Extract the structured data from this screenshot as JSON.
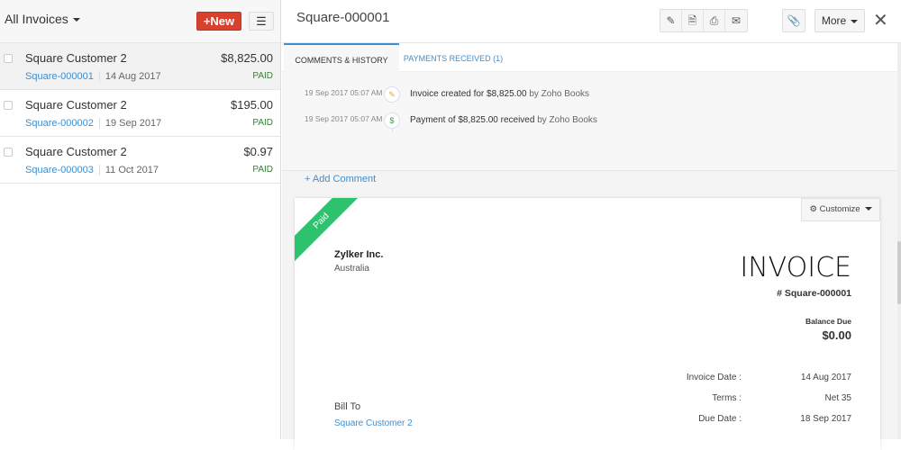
{
  "list": {
    "title": "All Invoices",
    "new_label": "New",
    "items": [
      {
        "customer": "Square Customer 2",
        "amount": "$8,825.00",
        "number": "Square-000001",
        "date": "14 Aug 2017",
        "status": "PAID"
      },
      {
        "customer": "Square Customer 2",
        "amount": "$195.00",
        "number": "Square-000002",
        "date": "19 Sep 2017",
        "status": "PAID"
      },
      {
        "customer": "Square Customer 2",
        "amount": "$0.97",
        "number": "Square-000003",
        "date": "11 Oct 2017",
        "status": "PAID"
      }
    ]
  },
  "detail": {
    "title": "Square-000001",
    "more_label": "More",
    "toolbar_icons": [
      "pencil-icon",
      "pdf-icon",
      "print-icon",
      "mail-icon",
      "paperclip-icon"
    ],
    "tabs": [
      "COMMENTS & HISTORY",
      "PAYMENTS RECEIVED (1)"
    ],
    "history": [
      {
        "time": "19 Sep 2017 05:07 AM",
        "text": "Invoice created for $8,825.00",
        "by": "by Zoho Books",
        "icon": "invoice-icon"
      },
      {
        "time": "19 Sep 2017 05:07 AM",
        "text": "Payment of $8,825.00 received",
        "by": "by Zoho Books",
        "icon": "dollar-icon"
      }
    ],
    "add_comment": "+ Add Comment"
  },
  "invoice": {
    "ribbon": "Paid",
    "customize": "Customize",
    "org": "Zylker Inc.",
    "country": "Australia",
    "heading": "INVOICE",
    "number": "# Square-000001",
    "balance_label": "Balance Due",
    "balance": "$0.00",
    "fields": [
      {
        "k": "Invoice Date :",
        "v": "14 Aug 2017"
      },
      {
        "k": "Terms :",
        "v": "Net 35"
      },
      {
        "k": "Due Date :",
        "v": "18 Sep 2017"
      }
    ],
    "bill_to": "Bill To",
    "bill_customer": "Square Customer 2"
  },
  "colors": {
    "accent": "#408dcc",
    "new_button": "#d9412f",
    "paid_ribbon": "#2dc26d",
    "paid_status": "#3a7a3a"
  }
}
